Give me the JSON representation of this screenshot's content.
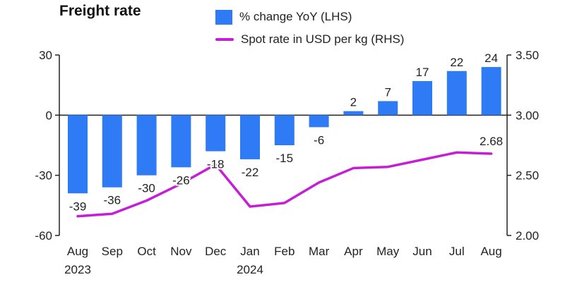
{
  "chart_data": {
    "type": "bar+line",
    "title": "Freight rate",
    "categories": [
      "Aug",
      "Sep",
      "Oct",
      "Nov",
      "Dec",
      "Jan",
      "Feb",
      "Mar",
      "Apr",
      "May",
      "Jun",
      "Jul",
      "Aug"
    ],
    "year_labels": [
      {
        "category_index": 0,
        "label": "2023"
      },
      {
        "category_index": 5,
        "label": "2024"
      }
    ],
    "series": [
      {
        "name": "% change YoY (LHS)",
        "type": "bar",
        "axis": "left",
        "color": "#2f7bf5",
        "values": [
          -39,
          -36,
          -30,
          -26,
          -18,
          -22,
          -15,
          -6,
          2,
          7,
          17,
          22,
          24
        ],
        "labels": [
          "-39",
          "-36",
          "-30",
          "-26",
          "-18",
          "-22",
          "-15",
          "-6",
          "2",
          "7",
          "17",
          "22",
          "24"
        ]
      },
      {
        "name": "Spot rate in USD per kg (RHS)",
        "type": "line",
        "axis": "right",
        "color": "#c51fd6",
        "values": [
          2.16,
          2.18,
          2.29,
          2.43,
          2.59,
          2.24,
          2.27,
          2.44,
          2.56,
          2.57,
          2.63,
          2.69,
          2.68
        ],
        "annotated_label": {
          "index": 12,
          "text": "2.68"
        }
      }
    ],
    "y_left": {
      "min": -60,
      "max": 30,
      "ticks": [
        30,
        0,
        -30,
        -60
      ],
      "tick_labels": [
        "30",
        "0",
        "-30",
        "-60"
      ]
    },
    "y_right": {
      "min": 2.0,
      "max": 3.5,
      "ticks": [
        3.5,
        3.0,
        2.5,
        2.0
      ],
      "tick_labels": [
        "3.50",
        "3.00",
        "2.50",
        "2.00"
      ]
    },
    "grid": false,
    "legend_position": "top"
  }
}
